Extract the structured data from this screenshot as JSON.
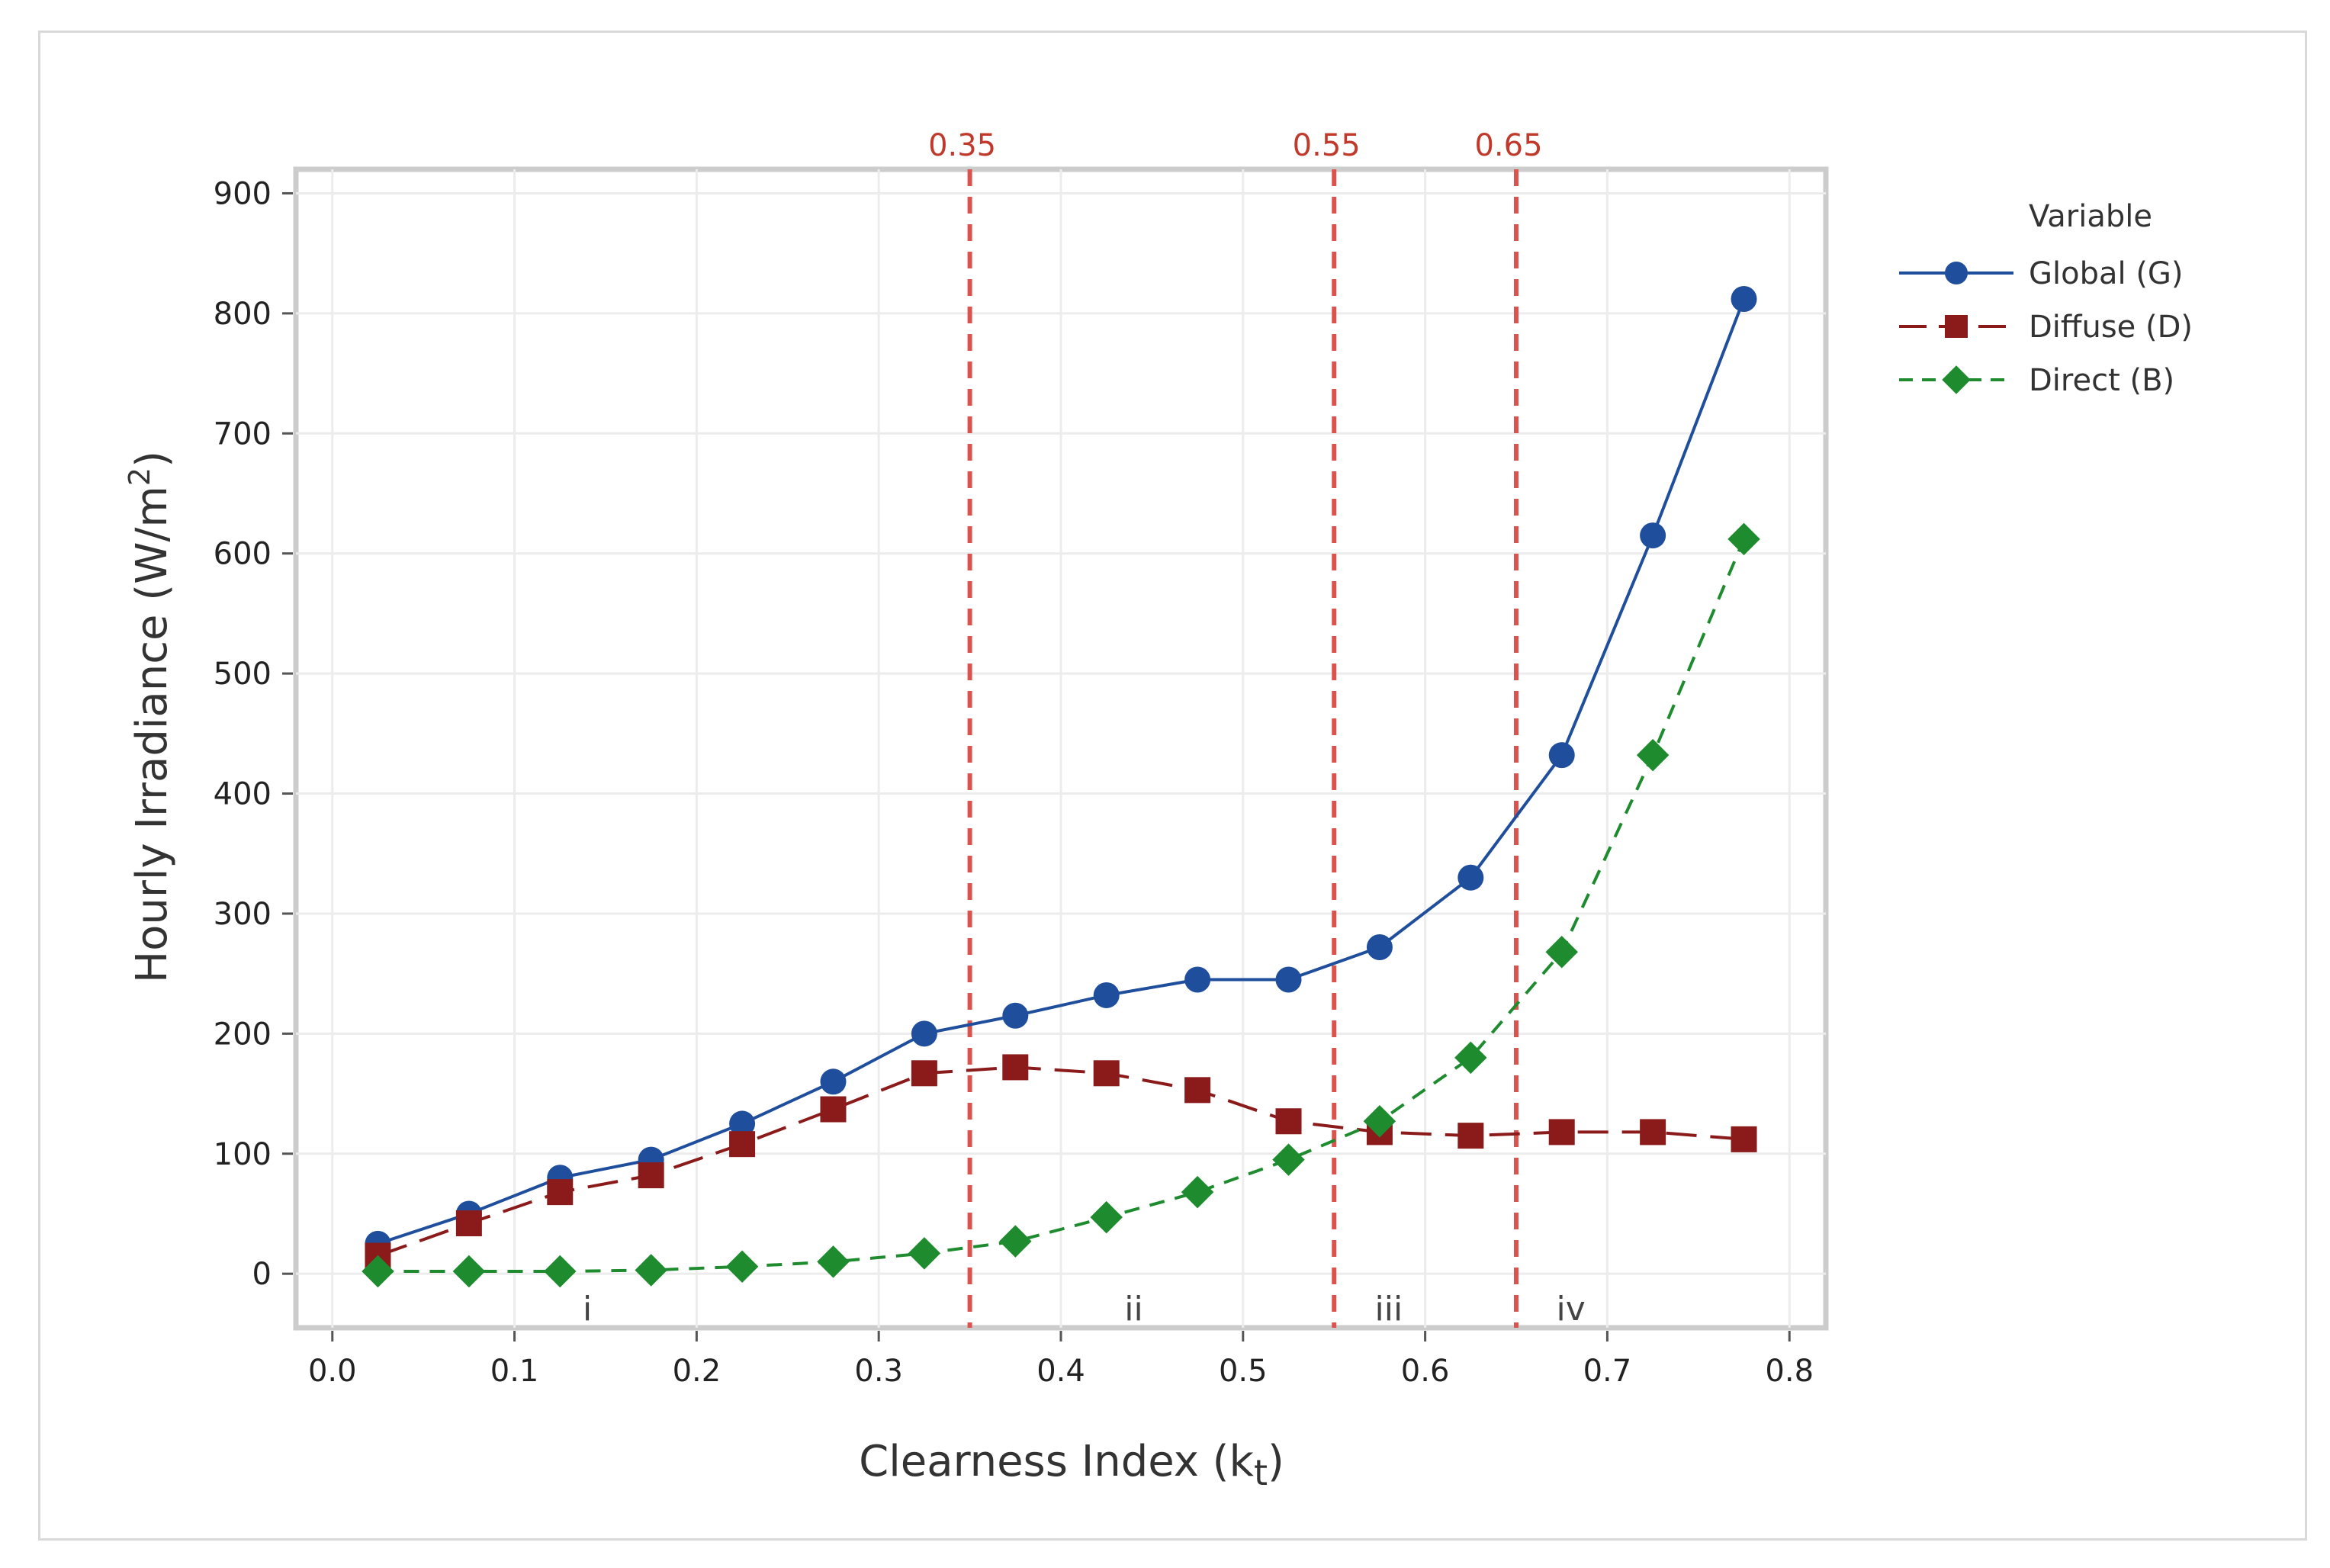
{
  "chart_data": {
    "type": "line",
    "xlabel": "Clearness Index (k",
    "xlabel_sub": "t",
    "xlabel_end": ")",
    "ylabel": "Hourly Irradiance (W/m",
    "ylabel_sup": "2",
    "ylabel_end": ")",
    "xlim": [
      -0.02,
      0.82
    ],
    "ylim": [
      -45,
      920
    ],
    "xticks": [
      0.0,
      0.1,
      0.2,
      0.3,
      0.4,
      0.5,
      0.6,
      0.7,
      0.8
    ],
    "xtick_labels": [
      "0.0",
      "0.1",
      "0.2",
      "0.3",
      "0.4",
      "0.5",
      "0.6",
      "0.7",
      "0.8"
    ],
    "yticks": [
      0,
      100,
      200,
      300,
      400,
      500,
      600,
      700,
      800,
      900
    ],
    "ytick_labels": [
      "0",
      "100",
      "200",
      "300",
      "400",
      "500",
      "600",
      "700",
      "800",
      "900"
    ],
    "grid": true,
    "legend": {
      "title": "Variable",
      "position": "right"
    },
    "x": [
      0.025,
      0.075,
      0.125,
      0.175,
      0.225,
      0.275,
      0.325,
      0.375,
      0.425,
      0.475,
      0.525,
      0.575,
      0.625,
      0.675,
      0.725,
      0.775
    ],
    "series": [
      {
        "name": "Global (G)",
        "color": "#1f4e9c",
        "marker": "circle",
        "dash": "solid",
        "values": [
          25,
          50,
          80,
          95,
          125,
          160,
          200,
          215,
          232,
          245,
          245,
          272,
          330,
          432,
          615,
          812
        ]
      },
      {
        "name": "Diffuse (D)",
        "color": "#8b1a1a",
        "marker": "square",
        "dash": "long-dash",
        "values": [
          15,
          42,
          68,
          82,
          108,
          137,
          167,
          172,
          167,
          153,
          127,
          118,
          115,
          118,
          118,
          112
        ]
      },
      {
        "name": "Direct (B)",
        "color": "#1e8c2e",
        "marker": "diamond",
        "dash": "dash",
        "values": [
          2,
          2,
          2,
          3,
          6,
          10,
          17,
          27,
          47,
          68,
          95,
          127,
          180,
          268,
          432,
          612
        ]
      }
    ],
    "reference_lines": [
      {
        "x": 0.35,
        "label": "0.35",
        "color": "#d9534f"
      },
      {
        "x": 0.55,
        "label": "0.55",
        "color": "#d9534f"
      },
      {
        "x": 0.65,
        "label": "0.65",
        "color": "#d9534f"
      }
    ],
    "regions": [
      {
        "label": "i",
        "x": 0.14
      },
      {
        "label": "ii",
        "x": 0.44
      },
      {
        "label": "iii",
        "x": 0.58
      },
      {
        "label": "iv",
        "x": 0.68
      }
    ]
  }
}
